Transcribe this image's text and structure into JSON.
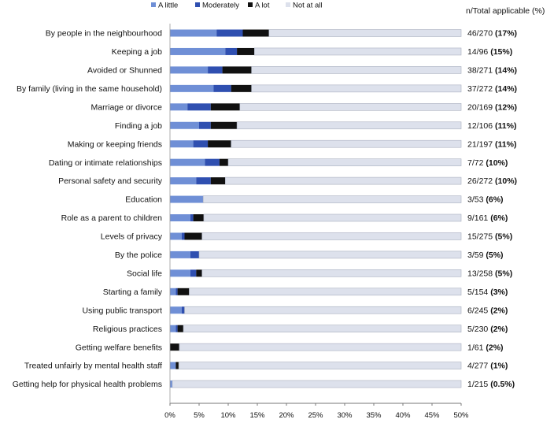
{
  "chart_data": {
    "type": "bar",
    "orientation": "horizontal",
    "stacked": true,
    "column_header": "n/Total applicable (%)",
    "xlim": [
      0,
      50
    ],
    "x_ticks": [
      "0%",
      "5%",
      "10%",
      "15%",
      "20%",
      "25%",
      "30%",
      "35%",
      "40%",
      "45%",
      "50%"
    ],
    "grid": false,
    "legend_position": "top",
    "series": [
      {
        "name": "A little",
        "color": "#6f8fd6"
      },
      {
        "name": "Moderately",
        "color": "#2f4fb0"
      },
      {
        "name": "A lot",
        "color": "#111111"
      },
      {
        "name": "Not at all",
        "color": "#dde1ec"
      }
    ],
    "rows": [
      {
        "label": "By people in the neighbourhood",
        "values": [
          8,
          4.5,
          4.5,
          33
        ],
        "stat": "46/270",
        "pct": "(17%)"
      },
      {
        "label": "Keeping a job",
        "values": [
          9.5,
          2,
          3,
          35.5
        ],
        "stat": "14/96",
        "pct": "(15%)"
      },
      {
        "label": "Avoided or Shunned",
        "values": [
          6.5,
          2.5,
          5,
          36
        ],
        "stat": "38/271",
        "pct": "(14%)"
      },
      {
        "label": "By family (living in the same household)",
        "values": [
          7.5,
          3,
          3.5,
          36
        ],
        "stat": "37/272",
        "pct": "(14%)"
      },
      {
        "label": "Marriage or divorce",
        "values": [
          3,
          4,
          5,
          38
        ],
        "stat": "20/169",
        "pct": "(12%)"
      },
      {
        "label": "Finding a job",
        "values": [
          5,
          2,
          4.5,
          38.5
        ],
        "stat": "12/106",
        "pct": "(11%)"
      },
      {
        "label": "Making or keeping friends",
        "values": [
          4,
          2.5,
          4,
          39.5
        ],
        "stat": "21/197",
        "pct": "(11%)"
      },
      {
        "label": "Dating or intimate relationships",
        "values": [
          6,
          2.5,
          1.5,
          40
        ],
        "stat": "7/72",
        "pct": "(10%)"
      },
      {
        "label": "Personal safety and security",
        "values": [
          4.5,
          2.5,
          2.5,
          40.5
        ],
        "stat": "26/272",
        "pct": "(10%)"
      },
      {
        "label": "Education",
        "values": [
          5.7,
          0,
          0,
          44.3
        ],
        "stat": "3/53",
        "pct": "(6%)"
      },
      {
        "label": "Role as a parent to children",
        "values": [
          3.5,
          0.5,
          1.8,
          44.2
        ],
        "stat": "9/161",
        "pct": "(6%)"
      },
      {
        "label": "Levels of privacy",
        "values": [
          2,
          0.5,
          3,
          44.5
        ],
        "stat": "15/275",
        "pct": "(5%)"
      },
      {
        "label": "By the police",
        "values": [
          3.5,
          1.5,
          0,
          45
        ],
        "stat": "3/59",
        "pct": "(5%)"
      },
      {
        "label": "Social life",
        "values": [
          3.5,
          1,
          1,
          44.5
        ],
        "stat": "13/258",
        "pct": "(5%)"
      },
      {
        "label": "Starting a family",
        "values": [
          1,
          0.3,
          2,
          46.7
        ],
        "stat": "5/154",
        "pct": "(3%)"
      },
      {
        "label": "Using public transport",
        "values": [
          2,
          0.5,
          0,
          47.5
        ],
        "stat": "6/245",
        "pct": "(2%)"
      },
      {
        "label": "Religious practices",
        "values": [
          1,
          0.3,
          1,
          47.7
        ],
        "stat": "5/230",
        "pct": "(2%)"
      },
      {
        "label": "Getting welfare benefits",
        "values": [
          0,
          0,
          1.6,
          48.4
        ],
        "stat": "1/61",
        "pct": "(2%)"
      },
      {
        "label": "Treated unfairly by mental health staff",
        "values": [
          1,
          0,
          0.5,
          48.5
        ],
        "stat": "4/277",
        "pct": "(1%)"
      },
      {
        "label": "Getting help for physical health problems",
        "values": [
          0.4,
          0,
          0,
          49.6
        ],
        "stat": "1/215",
        "pct": "(0.5%)"
      }
    ]
  }
}
